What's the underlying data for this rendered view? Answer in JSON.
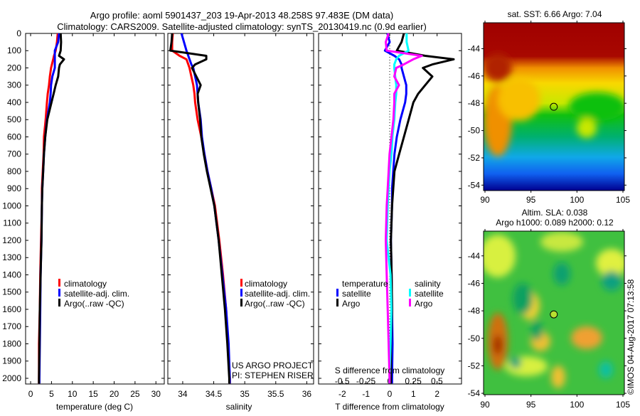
{
  "title_line1": "Argo profile: aoml 5901437_203 19-Apr-2013 48.258S 97.483E (DM data)",
  "title_line2": "Climatology: CARS2009. Satellite-adjusted climatology: synTS_20130419.nc (0.9d earlier)",
  "colors": {
    "climatology": "#ff0000",
    "satellite": "#0000ff",
    "argo": "#000000",
    "sal_satellite": "#00ffff",
    "sal_argo": "#ff00ff"
  },
  "credits": {
    "project": "US ARGO PROJECT",
    "pi": "PI: STEPHEN RISER",
    "imos": "©IMOS 04-Aug-2017 07:13:58"
  },
  "chart_data": [
    {
      "type": "line",
      "id": "temperature",
      "xlabel": "temperature (deg C)",
      "ylabel": "depth",
      "xlim": [
        -1.2,
        32
      ],
      "ylim": [
        2033,
        0
      ],
      "xticks": [
        0,
        5,
        10,
        15,
        20,
        25,
        30
      ],
      "yticks": [
        0,
        100,
        200,
        300,
        400,
        500,
        600,
        700,
        800,
        900,
        1000,
        1100,
        1200,
        1300,
        1400,
        1500,
        1600,
        1700,
        1800,
        1900,
        2000
      ],
      "legend": [
        "climatology",
        "satellite-adj. clim.",
        "Argo(..raw -QC)"
      ],
      "depth": [
        0,
        50,
        100,
        130,
        150,
        180,
        200,
        250,
        300,
        350,
        400,
        500,
        600,
        700,
        800,
        900,
        1000,
        1200,
        1400,
        1600,
        1800,
        2000,
        2030
      ],
      "series": [
        {
          "name": "climatology",
          "color": "#ff0000",
          "values": [
            6.5,
            6.3,
            6.0,
            5.6,
            5.4,
            5.1,
            4.9,
            4.6,
            4.4,
            4.1,
            3.9,
            3.6,
            3.2,
            3.1,
            2.9,
            2.7,
            2.7,
            2.5,
            2.3,
            2.2,
            2.0,
            2.0,
            2.0
          ]
        },
        {
          "name": "satellite-adj. clim.",
          "color": "#0000ff",
          "values": [
            6.8,
            6.6,
            5.8,
            5.8,
            5.8,
            5.8,
            5.8,
            5.2,
            4.9,
            4.8,
            4.6,
            3.9,
            3.5,
            3.2,
            3.0,
            2.8,
            2.7,
            2.6,
            2.4,
            2.3,
            2.2,
            2.1,
            2.1
          ]
        },
        {
          "name": "Argo(..raw -QC)",
          "color": "#000000",
          "values": [
            7.2,
            7.3,
            7.2,
            6.8,
            8.0,
            7.0,
            6.8,
            6.6,
            6.0,
            5.5,
            5.0,
            4.0,
            3.5,
            3.2,
            3.0,
            2.8,
            2.7,
            2.6,
            2.4,
            2.2,
            2.1,
            2.0,
            2.0
          ]
        }
      ]
    },
    {
      "type": "line",
      "id": "salinity",
      "xlabel": "salinity",
      "xlim": [
        33.76,
        36.11
      ],
      "ylim": [
        2033,
        0
      ],
      "xticks": [
        34,
        34.5,
        35,
        35.5,
        36
      ],
      "legend": [
        "climatology",
        "satellite-adj. clim.",
        "Argo(..raw -QC)"
      ],
      "depth": [
        0,
        50,
        100,
        130,
        150,
        180,
        200,
        250,
        300,
        350,
        400,
        500,
        600,
        700,
        800,
        900,
        1000,
        1200,
        1400,
        1600,
        1800,
        2000,
        2030
      ],
      "series": [
        {
          "name": "climatology",
          "color": "#ff0000",
          "values": [
            33.84,
            33.83,
            33.83,
            33.95,
            34.06,
            34.09,
            34.11,
            34.14,
            34.17,
            34.19,
            34.2,
            34.24,
            34.3,
            34.35,
            34.4,
            34.46,
            34.52,
            34.59,
            34.65,
            34.7,
            34.73,
            34.76,
            34.76
          ]
        },
        {
          "name": "satellite-adj. clim.",
          "color": "#0000ff",
          "values": [
            33.98,
            34.02,
            34.06,
            34.09,
            34.11,
            34.14,
            34.17,
            34.2,
            34.23,
            34.24,
            34.25,
            34.29,
            34.31,
            34.35,
            34.4,
            34.46,
            34.51,
            34.58,
            34.64,
            34.7,
            34.74,
            34.76,
            34.76
          ]
        },
        {
          "name": "Argo(..raw -QC)",
          "color": "#000000",
          "values": [
            33.83,
            33.82,
            33.8,
            34.38,
            34.38,
            34.2,
            34.15,
            34.22,
            34.29,
            34.24,
            34.25,
            34.28,
            34.3,
            34.34,
            34.39,
            34.45,
            34.51,
            34.58,
            34.63,
            34.68,
            34.72,
            34.75,
            34.75
          ]
        }
      ]
    },
    {
      "type": "line",
      "id": "difference",
      "xlabel": "T difference from climatology",
      "x2label": "S difference from climatology",
      "xlim": [
        -3,
        3.03
      ],
      "x2lim": [
        -0.75,
        0.76
      ],
      "ylim": [
        2033,
        0
      ],
      "xticks": [
        -2,
        -1,
        0,
        1,
        2
      ],
      "x2ticks": [
        -0.5,
        -0.25,
        0,
        0.25,
        0.5
      ],
      "x2ticklabels": [
        "-0.5",
        "-0.25",
        "0",
        "0.25",
        "0.5"
      ],
      "legend_temperature": {
        "heading": "temperature",
        "items": [
          "satellite",
          "Argo"
        ]
      },
      "legend_salinity": {
        "heading": "salinity",
        "items": [
          "satellite",
          "Argo"
        ]
      },
      "depth": [
        0,
        50,
        100,
        130,
        150,
        180,
        200,
        250,
        300,
        350,
        400,
        500,
        600,
        700,
        800,
        900,
        1000,
        1200,
        1400,
        1600,
        1800,
        2000,
        2030
      ],
      "series": [
        {
          "name": "T satellite",
          "axis": "T",
          "color": "#0000ff",
          "values": [
            -0.1,
            0.0,
            -0.2,
            0.2,
            0.4,
            0.5,
            0.5,
            0.6,
            0.7,
            0.7,
            0.65,
            0.45,
            0.3,
            0.2,
            0.15,
            0.1,
            0.1,
            0.05,
            0.08,
            0.1,
            0.12,
            0.1,
            0.1
          ]
        },
        {
          "name": "T Argo",
          "axis": "T",
          "color": "#000000",
          "values": [
            0.6,
            0.5,
            0.3,
            1.5,
            2.7,
            1.8,
            1.4,
            1.8,
            1.5,
            1.2,
            1.0,
            0.8,
            0.6,
            0.4,
            0.2,
            0.15,
            0.1,
            0.05,
            0.08,
            0.1,
            0.05,
            0.05,
            0.05
          ]
        },
        {
          "name": "S satellite",
          "axis": "S",
          "color": "#00ffff",
          "values": [
            0.18,
            0.18,
            0.2,
            0.1,
            0.07,
            0.05,
            0.05,
            0.06,
            0.07,
            0.07,
            0.06,
            0.05,
            0.03,
            0.02,
            0,
            -0.01,
            -0.02,
            -0.03,
            0.01,
            0.02,
            0.01,
            0,
            0
          ]
        },
        {
          "name": "S Argo",
          "axis": "S",
          "color": "#ff00ff",
          "values": [
            -0.01,
            -0.04,
            -0.03,
            0.34,
            0.25,
            0.15,
            0.07,
            0.05,
            0.1,
            0.05,
            0.05,
            0.04,
            0.02,
            0,
            -0.01,
            -0.02,
            -0.03,
            -0.04,
            -0.03,
            -0.02,
            -0.01,
            0,
            0
          ]
        }
      ]
    },
    {
      "type": "heatmap",
      "id": "sst_map",
      "title": "sat. SST: 6.66 Argo: 7.04",
      "xlim": [
        90,
        105
      ],
      "ylim": [
        -54.4,
        -42.1
      ],
      "xticks": [
        90,
        95,
        100,
        105
      ],
      "yticks": [
        -44,
        -46,
        -48,
        -50,
        -52,
        -54
      ],
      "marker": {
        "lon": 97.483,
        "lat": -48.258
      }
    },
    {
      "type": "heatmap",
      "id": "sla_map",
      "title_line1": "Altim. SLA: 0.038",
      "title_line2": "Argo h1000: 0.089 h2000: 0.12",
      "xlim": [
        90,
        105
      ],
      "ylim": [
        -54.1,
        -42.2
      ],
      "xticks": [
        90,
        95,
        100,
        105
      ],
      "yticks": [
        -44,
        -46,
        -48,
        -50,
        -52,
        -54
      ],
      "marker": {
        "lon": 97.483,
        "lat": -48.258
      }
    }
  ]
}
